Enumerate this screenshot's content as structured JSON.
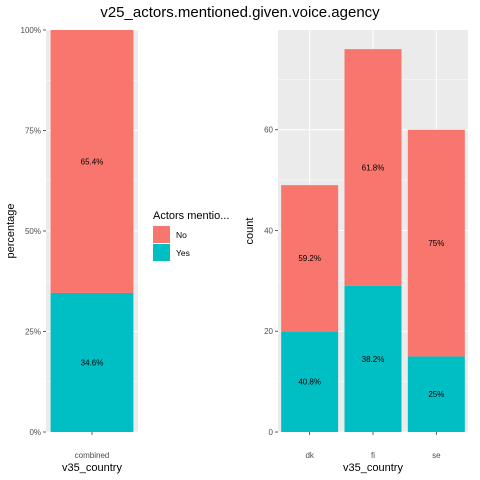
{
  "chart_data": {
    "title": "v25_actors.mentioned.given.voice.agency",
    "legend": {
      "title": "Actors mentio...",
      "entries": [
        {
          "label": "No",
          "color": "#F8766D"
        },
        {
          "label": "Yes",
          "color": "#00BFC4"
        }
      ],
      "placement": "between panels, vertically centered"
    },
    "panels": [
      {
        "type": "bar",
        "stacked": true,
        "categories": [
          "combined"
        ],
        "series": [
          {
            "name": "Yes",
            "values": [
              34.6
            ],
            "labels": [
              "34.6%"
            ]
          },
          {
            "name": "No",
            "values": [
              65.4
            ],
            "labels": [
              "65.4%"
            ]
          }
        ],
        "xlabel": "v35_country",
        "ylabel": "percentage",
        "ylim": [
          0,
          100
        ],
        "yticks": [
          0,
          25,
          50,
          75,
          100
        ],
        "ytick_labels": [
          "0%",
          "25%",
          "50%",
          "75%",
          "100%"
        ],
        "grid": true
      },
      {
        "type": "bar",
        "stacked": true,
        "categories": [
          "dk",
          "fi",
          "se"
        ],
        "series": [
          {
            "name": "Yes",
            "values": [
              20,
              29,
              15
            ],
            "labels": [
              "40.8%",
              "38.2%",
              "25%"
            ]
          },
          {
            "name": "No",
            "values": [
              29,
              47,
              45
            ],
            "labels": [
              "59.2%",
              "61.8%",
              "75%"
            ]
          }
        ],
        "xlabel": "v35_country",
        "ylabel": "count",
        "ylim": [
          0,
          79.8
        ],
        "yticks": [
          0,
          20,
          40,
          60
        ],
        "ytick_labels": [
          "0",
          "20",
          "40",
          "60"
        ],
        "grid": true
      }
    ]
  }
}
